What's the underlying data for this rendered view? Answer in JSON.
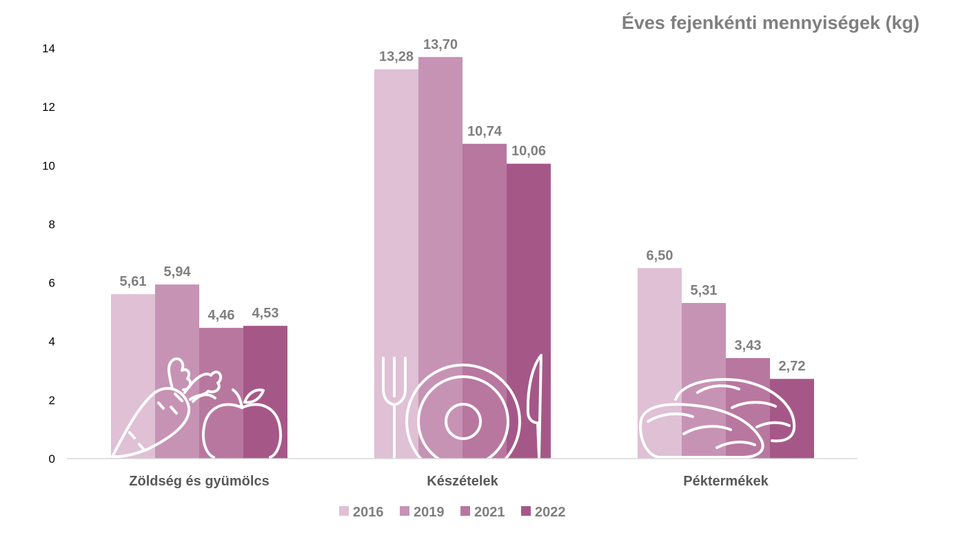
{
  "colors": {
    "series": [
      "#dfc0d5",
      "#c693b5",
      "#b8779f",
      "#a55888"
    ],
    "axis_text": "#000000",
    "label_text": "#7f7f7f",
    "baseline": "#d9d9d9",
    "icon_stroke": "#ffffff"
  },
  "chart_data": {
    "type": "bar",
    "title": "Éves fejenkénti mennyiségek (kg)",
    "xlabel": "",
    "ylabel": "",
    "categories": [
      "Zöldség és gyümölcs",
      "Készételek",
      "Péktermékek"
    ],
    "series": [
      {
        "name": "2016",
        "values": [
          5.61,
          13.28,
          6.5
        ],
        "labels": [
          "5,61",
          "13,28",
          "6,50"
        ]
      },
      {
        "name": "2019",
        "values": [
          5.94,
          13.7,
          5.31
        ],
        "labels": [
          "5,94",
          "13,70",
          "5,31"
        ]
      },
      {
        "name": "2021",
        "values": [
          4.46,
          10.74,
          3.43
        ],
        "labels": [
          "4,46",
          "10,74",
          "3,43"
        ]
      },
      {
        "name": "2022",
        "values": [
          4.53,
          10.06,
          2.72
        ],
        "labels": [
          "4,53",
          "10,06",
          "2,72"
        ]
      }
    ],
    "ylim": [
      0,
      14
    ],
    "yticks": [
      "0",
      "2",
      "4",
      "6",
      "8",
      "10",
      "12",
      "14"
    ],
    "grid": false,
    "legend_position": "bottom-center",
    "category_icons": [
      "carrot-apple-icon",
      "fork-plate-knife-icon",
      "bread-icon"
    ]
  }
}
